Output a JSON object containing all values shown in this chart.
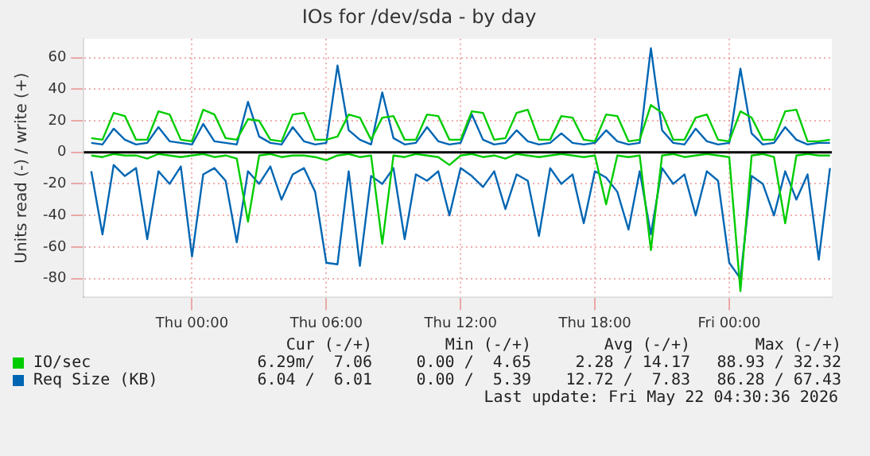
{
  "chart_data": {
    "type": "line",
    "title": "IOs for /dev/sda - by day",
    "ylabel": "Units read (-) / write (+)",
    "x": [
      "2026-05-20T19:30",
      "2026-05-20T20:00",
      "2026-05-20T20:30",
      "2026-05-20T21:00",
      "2026-05-20T21:30",
      "2026-05-20T22:00",
      "2026-05-20T22:30",
      "2026-05-20T23:00",
      "2026-05-20T23:30",
      "2026-05-21T00:00",
      "2026-05-21T00:30",
      "2026-05-21T01:00",
      "2026-05-21T01:30",
      "2026-05-21T02:00",
      "2026-05-21T02:30",
      "2026-05-21T03:00",
      "2026-05-21T03:30",
      "2026-05-21T04:00",
      "2026-05-21T04:30",
      "2026-05-21T05:00",
      "2026-05-21T05:30",
      "2026-05-21T06:00",
      "2026-05-21T06:30",
      "2026-05-21T07:00",
      "2026-05-21T07:30",
      "2026-05-21T08:00",
      "2026-05-21T08:30",
      "2026-05-21T09:00",
      "2026-05-21T09:30",
      "2026-05-21T10:00",
      "2026-05-21T10:30",
      "2026-05-21T11:00",
      "2026-05-21T11:30",
      "2026-05-21T12:00",
      "2026-05-21T12:30",
      "2026-05-21T13:00",
      "2026-05-21T13:30",
      "2026-05-21T14:00",
      "2026-05-21T14:30",
      "2026-05-21T15:00",
      "2026-05-21T15:30",
      "2026-05-21T16:00",
      "2026-05-21T16:30",
      "2026-05-21T17:00",
      "2026-05-21T17:30",
      "2026-05-21T18:00",
      "2026-05-21T18:30",
      "2026-05-21T19:00",
      "2026-05-21T19:30",
      "2026-05-21T20:00",
      "2026-05-21T20:30",
      "2026-05-21T21:00",
      "2026-05-21T21:30",
      "2026-05-21T22:00",
      "2026-05-21T22:30",
      "2026-05-21T23:00",
      "2026-05-21T23:30",
      "2026-05-22T00:00",
      "2026-05-22T00:30",
      "2026-05-22T01:00",
      "2026-05-22T01:30",
      "2026-05-22T02:00",
      "2026-05-22T02:30",
      "2026-05-22T03:00",
      "2026-05-22T03:30",
      "2026-05-22T04:00",
      "2026-05-22T04:30"
    ],
    "series": [
      {
        "name": "IO/sec",
        "color": "#00cc00",
        "values": [
          9,
          8,
          25,
          23,
          8,
          8,
          26,
          24,
          8,
          7,
          27,
          24,
          9,
          8,
          21,
          20,
          8,
          7,
          24,
          25,
          8,
          8,
          10,
          24,
          22,
          8,
          22,
          23,
          8,
          8,
          24,
          23,
          8,
          8,
          26,
          25,
          8,
          9,
          25,
          27,
          8,
          8,
          23,
          22,
          8,
          7,
          24,
          23,
          7,
          8,
          30,
          25,
          8,
          8,
          22,
          24,
          8,
          7,
          26,
          22,
          8,
          8,
          26,
          27,
          7,
          7,
          8
        ]
      },
      {
        "color": "#00cc00",
        "values": [
          -2,
          -3,
          -1,
          -2,
          -2,
          -4,
          -1,
          -2,
          -3,
          -2,
          -1,
          -3,
          -2,
          -4,
          -44,
          -2,
          -1,
          -3,
          -2,
          -2,
          -3,
          -5,
          -2,
          -1,
          -3,
          -2,
          -58,
          -2,
          -3,
          -1,
          -2,
          -3,
          -8,
          -2,
          -1,
          -3,
          -2,
          -4,
          -1,
          -2,
          -3,
          -2,
          -1,
          -2,
          -3,
          -2,
          -33,
          -2,
          -3,
          -2,
          -62,
          -2,
          -1,
          -3,
          -2,
          -1,
          -2,
          -3,
          -88,
          -2,
          -1,
          -3,
          -45,
          -2,
          -1,
          -2,
          -2
        ]
      },
      {
        "name": "Req Size (KB)",
        "color": "#0066b3",
        "values": [
          6,
          5,
          15,
          8,
          5,
          6,
          16,
          7,
          6,
          5,
          18,
          7,
          6,
          5,
          32,
          10,
          6,
          5,
          16,
          7,
          5,
          6,
          55,
          14,
          8,
          5,
          38,
          9,
          5,
          6,
          16,
          7,
          5,
          6,
          24,
          8,
          5,
          6,
          14,
          7,
          5,
          6,
          12,
          6,
          5,
          6,
          14,
          7,
          5,
          6,
          66,
          14,
          6,
          5,
          15,
          7,
          5,
          6,
          53,
          12,
          5,
          6,
          16,
          8,
          5,
          6,
          6
        ]
      },
      {
        "color": "#0066b3",
        "values": [
          -12,
          -52,
          -8,
          -15,
          -10,
          -55,
          -12,
          -20,
          -9,
          -66,
          -14,
          -10,
          -18,
          -57,
          -12,
          -20,
          -9,
          -30,
          -14,
          -10,
          -25,
          -70,
          -71,
          -12,
          -72,
          -15,
          -20,
          -10,
          -55,
          -14,
          -18,
          -12,
          -40,
          -10,
          -15,
          -22,
          -12,
          -36,
          -14,
          -18,
          -53,
          -10,
          -20,
          -14,
          -45,
          -12,
          -16,
          -25,
          -49,
          -12,
          -52,
          -10,
          -20,
          -14,
          -40,
          -12,
          -18,
          -70,
          -80,
          -15,
          -20,
          -40,
          -12,
          -30,
          -14,
          -68,
          -10
        ]
      }
    ],
    "xlim": [
      "2026-05-20T19:10",
      "2026-05-22T04:35"
    ],
    "xticks": [
      {
        "value": "2026-05-21T00:00",
        "label": "Thu 00:00"
      },
      {
        "value": "2026-05-21T06:00",
        "label": "Thu 06:00"
      },
      {
        "value": "2026-05-21T12:00",
        "label": "Thu 12:00"
      },
      {
        "value": "2026-05-21T18:00",
        "label": "Thu 18:00"
      },
      {
        "value": "2026-05-22T00:00",
        "label": "Fri 00:00"
      }
    ],
    "ylim": [
      -92,
      72
    ],
    "yticks": [
      -80,
      -60,
      -40,
      -20,
      0,
      20,
      40,
      60
    ],
    "grid": true,
    "legend": "bottom",
    "marker": "none",
    "line_style": "solid",
    "ref_lines": [
      {
        "axis": "y",
        "value": 0,
        "color": "#000000"
      }
    ],
    "annotations": [
      "Cur (-/+)",
      "Min (-/+)",
      "Avg (-/+)",
      "Max (-/+)",
      "6.29m/  7.06",
      "0.00 /  4.65",
      "2.28 / 14.17",
      "88.93 / 32.32",
      "6.04 /  6.01",
      "0.00 /  5.39",
      "12.72 /  7.83",
      "86.28 / 67.43",
      "Last update: Fri May 22 04:30:36 2026"
    ]
  }
}
